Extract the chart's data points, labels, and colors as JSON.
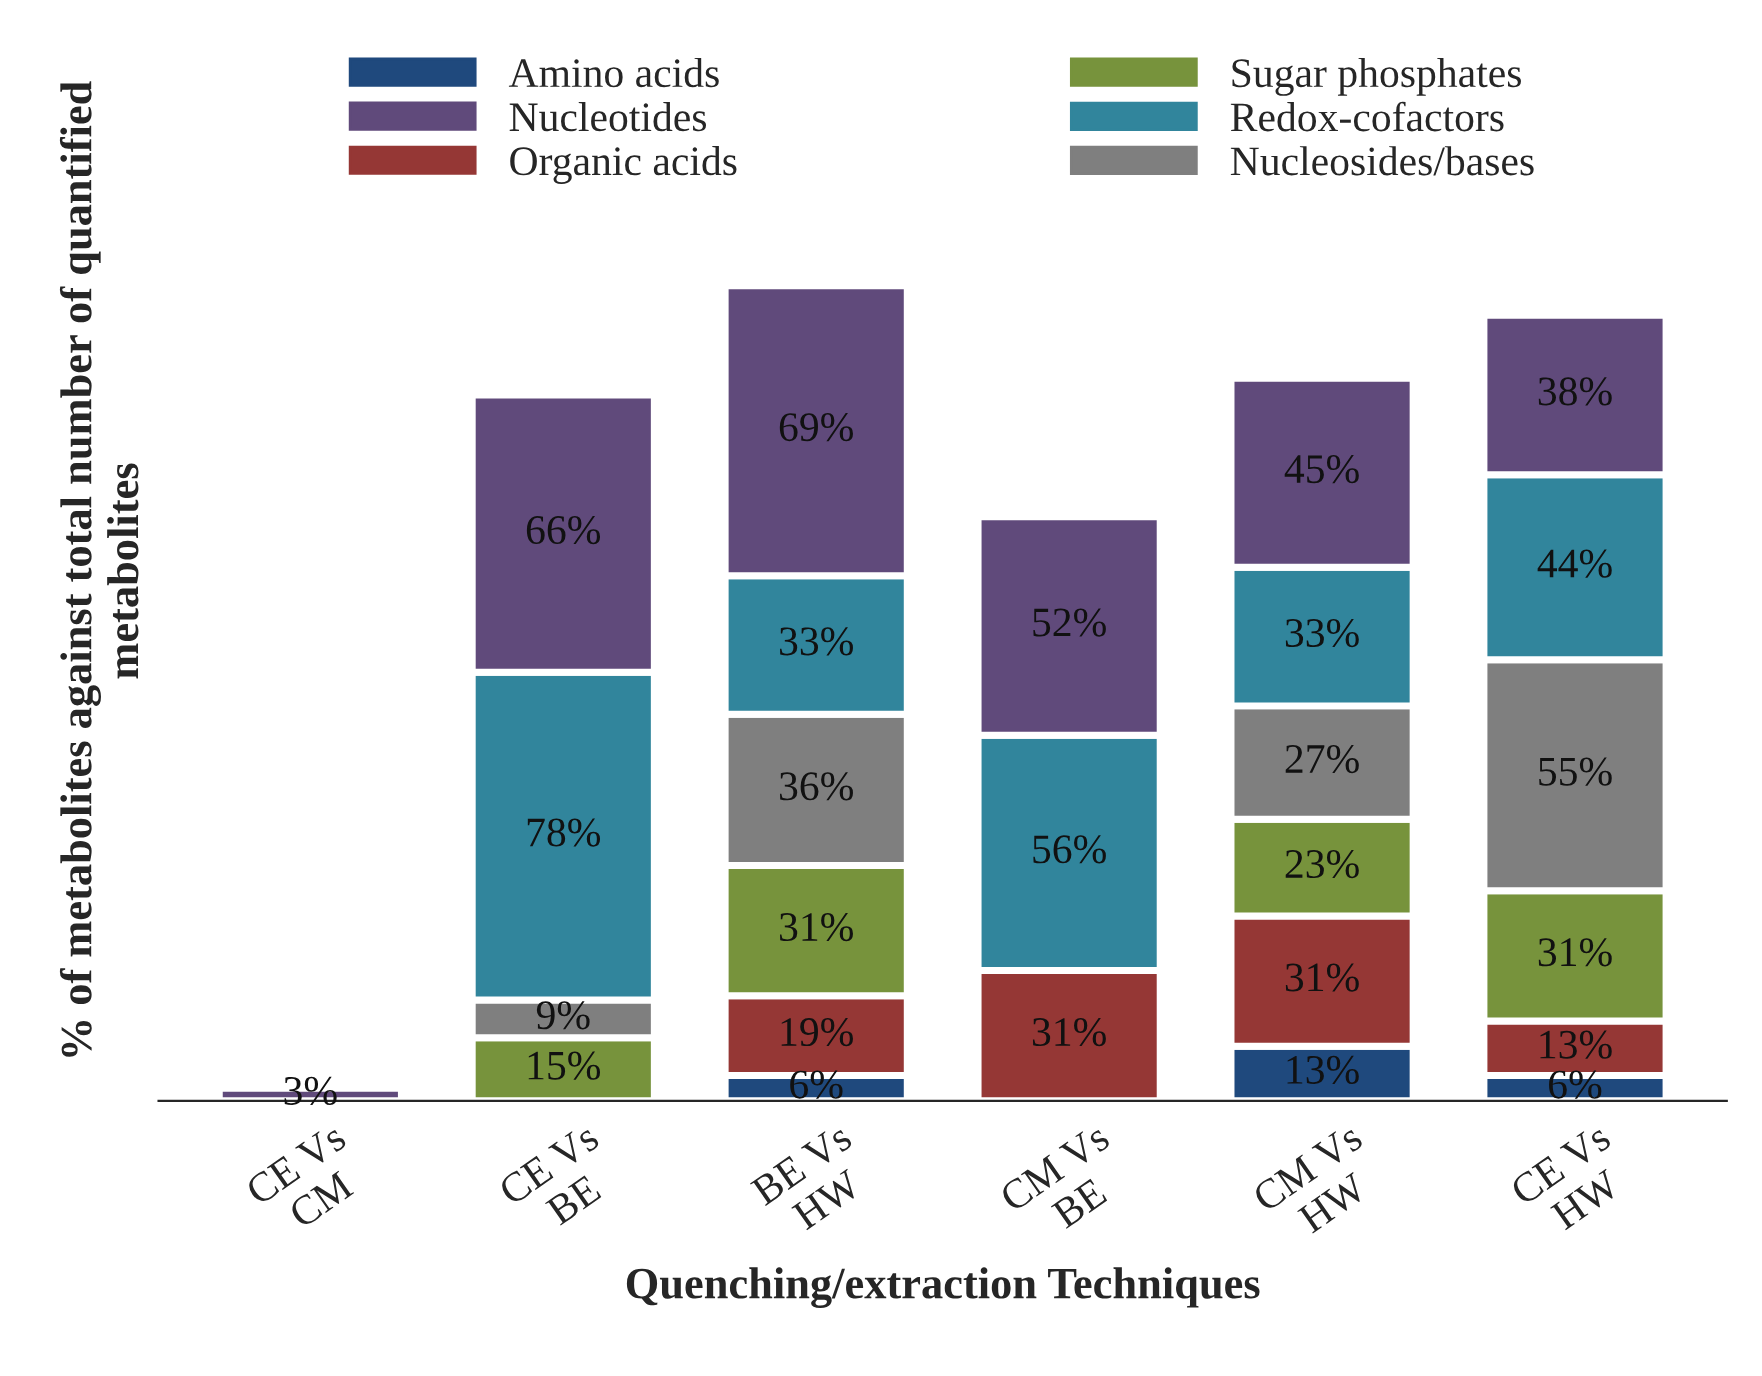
{
  "chart_data": {
    "type": "bar",
    "stacked": true,
    "xlabel": "Quenching/extraction Techniques",
    "ylabel": "% of metabolites against total number of quantified metabolites",
    "categories": [
      "CE Vs\nCM",
      "CE Vs\nBE",
      "BE Vs\nHW",
      "CM Vs\nBE",
      "CM Vs\nHW",
      "CE Vs\nHW"
    ],
    "series": [
      {
        "name": "Amino acids",
        "color": "#1f497d",
        "values": [
          null,
          null,
          6,
          null,
          13,
          6
        ],
        "value_labels": [
          null,
          null,
          "6%",
          null,
          "13%",
          "6%"
        ]
      },
      {
        "name": "Organic acids",
        "color": "#953735",
        "values": [
          null,
          null,
          19,
          31,
          31,
          13
        ],
        "value_labels": [
          null,
          null,
          "19%",
          "31%",
          "31%",
          "13%"
        ]
      },
      {
        "name": "Sugar phosphates",
        "color": "#77933c",
        "values": [
          null,
          15,
          31,
          null,
          23,
          31
        ],
        "value_labels": [
          null,
          "15%",
          "31%",
          null,
          "23%",
          "31%"
        ]
      },
      {
        "name": "Nucleosides/bases",
        "color": "#7f7f7f",
        "values": [
          null,
          9,
          36,
          null,
          27,
          55
        ],
        "value_labels": [
          null,
          "9%",
          "36%",
          null,
          "27%",
          "55%"
        ]
      },
      {
        "name": "Redox-cofactors",
        "color": "#31859c",
        "values": [
          null,
          78,
          33,
          56,
          33,
          44
        ],
        "value_labels": [
          null,
          "78%",
          "33%",
          "56%",
          "33%",
          "44%"
        ]
      },
      {
        "name": "Nucleotides",
        "color": "#604a7b",
        "values": [
          3,
          66,
          69,
          52,
          45,
          38
        ],
        "value_labels": [
          "3%",
          "66%",
          "69%",
          "52%",
          "45%",
          "38%"
        ]
      }
    ],
    "legend": "top",
    "grid": false
  }
}
